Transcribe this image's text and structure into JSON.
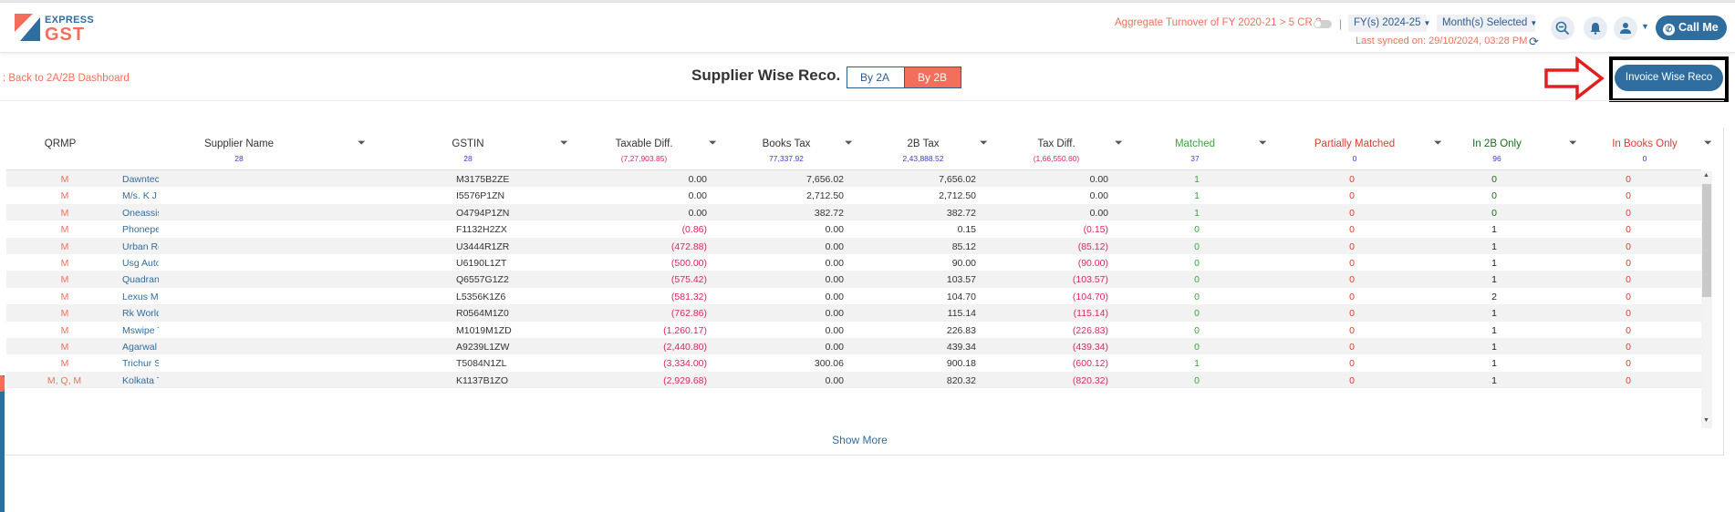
{
  "logo": {
    "top": "EXPRESS",
    "bottom": "GST"
  },
  "header": {
    "aggregate_turnover": "Aggregate Turnover of FY 2020-21 > 5 CR ?",
    "separator": "|",
    "fy_select": "FY(s) 2024-25",
    "month_select": "Month(s) Selected",
    "last_synced": "Last synced on: 29/10/2024, 03:28 PM",
    "call_me": "Call Me"
  },
  "toolbar": {
    "back_link": ": Back to 2A/2B Dashboard",
    "title": "Supplier Wise Reco.",
    "tabs": [
      {
        "label": "By 2A"
      },
      {
        "label": "By 2B"
      }
    ],
    "invoice_wise_reco": "Invoice Wise Reco"
  },
  "table": {
    "columns": [
      {
        "label": "QRMP",
        "sub": ""
      },
      {
        "label": "Supplier Name",
        "sub": "28"
      },
      {
        "label": "GSTIN",
        "sub": "28"
      },
      {
        "label": "Taxable Diff.",
        "sub": "(7,27,903.85)"
      },
      {
        "label": "Books Tax",
        "sub": "77,337.92"
      },
      {
        "label": "2B Tax",
        "sub": "2,43,888.52"
      },
      {
        "label": "Tax Diff.",
        "sub": "(1,66,550.60)"
      },
      {
        "label": "Matched",
        "sub": "37"
      },
      {
        "label": "Partially Matched",
        "sub": "0"
      },
      {
        "label": "In 2B Only",
        "sub": "96"
      },
      {
        "label": "In Books Only",
        "sub": "0"
      }
    ],
    "rows": [
      {
        "qrmp": "M",
        "supplier": "Dawntech",
        "gstin": "M3175B2ZE",
        "taxable_diff": "0.00",
        "books_tax": "7,656.02",
        "b2_tax": "7,656.02",
        "tax_diff": "0.00",
        "matched": "1",
        "partial": "0",
        "in_2b": "0",
        "in_books": "0"
      },
      {
        "qrmp": "M",
        "supplier": "M/s. K J T",
        "gstin": "I5576P1ZN",
        "taxable_diff": "0.00",
        "books_tax": "2,712.50",
        "b2_tax": "2,712.50",
        "tax_diff": "0.00",
        "matched": "1",
        "partial": "0",
        "in_2b": "0",
        "in_books": "0"
      },
      {
        "qrmp": "M",
        "supplier": "Oneassist",
        "gstin": "O4794P1ZN",
        "taxable_diff": "0.00",
        "books_tax": "382.72",
        "b2_tax": "382.72",
        "tax_diff": "0.00",
        "matched": "1",
        "partial": "0",
        "in_2b": "0",
        "in_books": "0"
      },
      {
        "qrmp": "M",
        "supplier": "Phonepe",
        "gstin": "F1132H2ZX",
        "taxable_diff": "(0.86)",
        "books_tax": "0.00",
        "b2_tax": "0.15",
        "tax_diff": "(0.15)",
        "matched": "0",
        "partial": "0",
        "in_2b": "1",
        "in_books": "0"
      },
      {
        "qrmp": "M",
        "supplier": "Urban Re",
        "gstin": "U3444R1ZR",
        "taxable_diff": "(472.88)",
        "books_tax": "0.00",
        "b2_tax": "85.12",
        "tax_diff": "(85.12)",
        "matched": "0",
        "partial": "0",
        "in_2b": "1",
        "in_books": "0"
      },
      {
        "qrmp": "M",
        "supplier": "Usg Auto",
        "gstin": "U6190L1ZT",
        "taxable_diff": "(500.00)",
        "books_tax": "0.00",
        "b2_tax": "90.00",
        "tax_diff": "(90.00)",
        "matched": "0",
        "partial": "0",
        "in_2b": "1",
        "in_books": "0"
      },
      {
        "qrmp": "M",
        "supplier": "Quadrant",
        "gstin": "Q6557G1Z2",
        "taxable_diff": "(575.42)",
        "books_tax": "0.00",
        "b2_tax": "103.57",
        "tax_diff": "(103.57)",
        "matched": "0",
        "partial": "0",
        "in_2b": "1",
        "in_books": "0"
      },
      {
        "qrmp": "M",
        "supplier": "Lexus Mc",
        "gstin": "L5356K1Z6",
        "taxable_diff": "(581.32)",
        "books_tax": "0.00",
        "b2_tax": "104.70",
        "tax_diff": "(104.70)",
        "matched": "0",
        "partial": "0",
        "in_2b": "2",
        "in_books": "0"
      },
      {
        "qrmp": "M",
        "supplier": "Rk World",
        "gstin": "R0564M1Z0",
        "taxable_diff": "(762.86)",
        "books_tax": "0.00",
        "b2_tax": "115.14",
        "tax_diff": "(115.14)",
        "matched": "0",
        "partial": "0",
        "in_2b": "1",
        "in_books": "0"
      },
      {
        "qrmp": "M",
        "supplier": "Mswipe T",
        "gstin": "M1019M1ZD",
        "taxable_diff": "(1,260.17)",
        "books_tax": "0.00",
        "b2_tax": "226.83",
        "tax_diff": "(226.83)",
        "matched": "0",
        "partial": "0",
        "in_2b": "1",
        "in_books": "0"
      },
      {
        "qrmp": "M",
        "supplier": "Agarwal",
        "gstin": "A9239L1ZW",
        "taxable_diff": "(2,440.80)",
        "books_tax": "0.00",
        "b2_tax": "439.34",
        "tax_diff": "(439.34)",
        "matched": "0",
        "partial": "0",
        "in_2b": "1",
        "in_books": "0"
      },
      {
        "qrmp": "M",
        "supplier": "Trichur S",
        "gstin": "T5084N1ZL",
        "taxable_diff": "(3,334.00)",
        "books_tax": "300.06",
        "b2_tax": "900.18",
        "tax_diff": "(600.12)",
        "matched": "1",
        "partial": "0",
        "in_2b": "1",
        "in_books": "0"
      },
      {
        "qrmp": "M, Q, M",
        "supplier": "Kolkata T",
        "gstin": "K1137B1ZO",
        "taxable_diff": "(2,929.68)",
        "books_tax": "0.00",
        "b2_tax": "820.32",
        "tax_diff": "(820.32)",
        "matched": "0",
        "partial": "0",
        "in_2b": "1",
        "in_books": "0"
      }
    ],
    "show_more": "Show More"
  },
  "colors": {
    "brand_blue": "#2f6d9f",
    "brand_orange": "#f36f5c",
    "negative": "#e0245e",
    "matched_green": "#3aa641"
  }
}
